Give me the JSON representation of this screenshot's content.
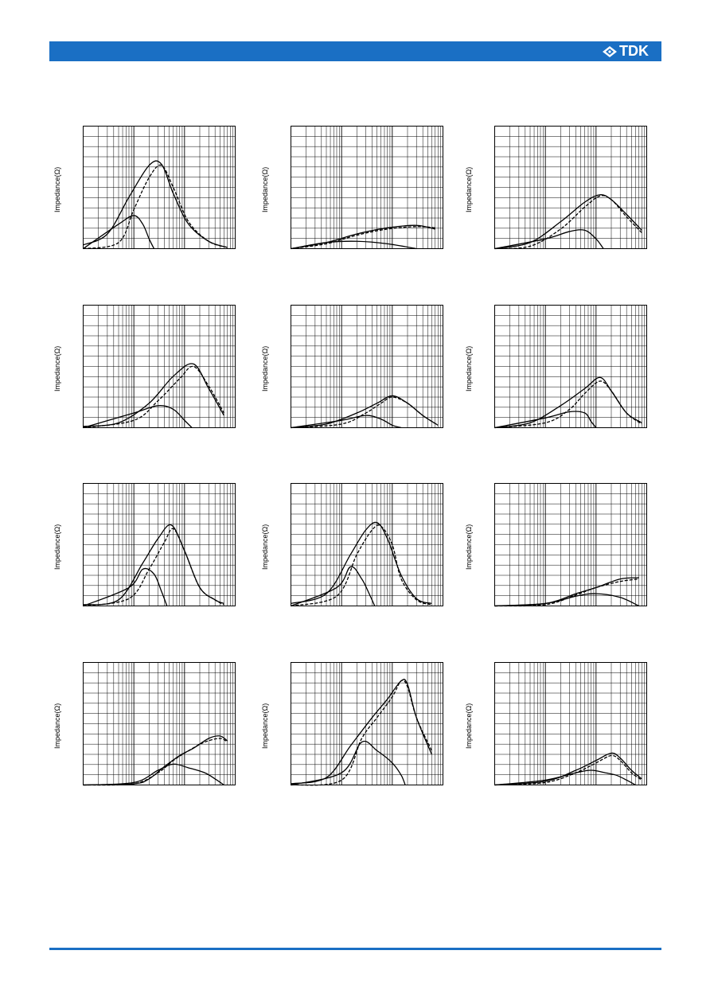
{
  "brand": {
    "logo_text": "TDK",
    "header_color": "#1a6fc4",
    "footer_color": "#1a6fc4"
  },
  "chart_data": [
    {
      "type": "line",
      "ylabel": "Impedance(Ω)",
      "xscale": "log",
      "xlim": [
        1,
        1000
      ],
      "ylim": [
        0,
        1
      ],
      "series": [
        {
          "name": "",
          "style": "solid",
          "x": [
            1,
            3,
            8,
            20,
            35,
            60,
            120,
            300,
            700
          ],
          "y": [
            0.03,
            0.12,
            0.42,
            0.68,
            0.69,
            0.45,
            0.2,
            0.06,
            0.01
          ]
        },
        {
          "name": "",
          "style": "dashed",
          "x": [
            1,
            5,
            10,
            20,
            35,
            60,
            120,
            300,
            700
          ],
          "y": [
            0.0,
            0.05,
            0.32,
            0.58,
            0.68,
            0.5,
            0.22,
            0.06,
            0.01
          ]
        },
        {
          "name": "",
          "style": "solid",
          "x": [
            1,
            5,
            10,
            15,
            20,
            25
          ],
          "y": [
            0.0,
            0.2,
            0.27,
            0.2,
            0.08,
            0.0
          ]
        }
      ]
    },
    {
      "type": "line",
      "ylabel": "Impedance(Ω)",
      "xscale": "log",
      "xlim": [
        1,
        1000
      ],
      "ylim": [
        0,
        1
      ],
      "series": [
        {
          "name": "",
          "style": "solid",
          "x": [
            1,
            5,
            20,
            80,
            300,
            700
          ],
          "y": [
            0.0,
            0.05,
            0.12,
            0.17,
            0.19,
            0.16
          ]
        },
        {
          "name": "",
          "style": "dashed",
          "x": [
            1,
            5,
            20,
            80,
            300,
            700
          ],
          "y": [
            0.0,
            0.04,
            0.11,
            0.16,
            0.18,
            0.17
          ]
        },
        {
          "name": "",
          "style": "solid",
          "x": [
            1,
            5,
            20,
            80,
            300
          ],
          "y": [
            0.0,
            0.05,
            0.06,
            0.04,
            0.0
          ]
        }
      ]
    },
    {
      "type": "line",
      "ylabel": "Impedance(Ω)",
      "xscale": "log",
      "xlim": [
        1,
        1000
      ],
      "ylim": [
        0,
        1
      ],
      "series": [
        {
          "name": "",
          "style": "solid",
          "x": [
            1,
            5,
            20,
            60,
            120,
            200,
            400,
            800
          ],
          "y": [
            0.0,
            0.05,
            0.22,
            0.38,
            0.44,
            0.4,
            0.28,
            0.15
          ]
        },
        {
          "name": "",
          "style": "dashed",
          "x": [
            1,
            5,
            20,
            60,
            120,
            200,
            400,
            800
          ],
          "y": [
            0.0,
            0.02,
            0.16,
            0.34,
            0.43,
            0.4,
            0.26,
            0.13
          ]
        },
        {
          "name": "",
          "style": "solid",
          "x": [
            1,
            10,
            30,
            60,
            100,
            140
          ],
          "y": [
            0.0,
            0.08,
            0.14,
            0.15,
            0.08,
            0.0
          ]
        }
      ]
    },
    {
      "type": "line",
      "ylabel": "Impedance(Ω)",
      "xscale": "log",
      "xlim": [
        1,
        1000
      ],
      "ylim": [
        0,
        1
      ],
      "series": [
        {
          "name": "",
          "style": "solid",
          "x": [
            1,
            5,
            20,
            60,
            150,
            300,
            600
          ],
          "y": [
            0.01,
            0.04,
            0.2,
            0.42,
            0.52,
            0.32,
            0.1
          ]
        },
        {
          "name": "",
          "style": "dashed",
          "x": [
            1,
            10,
            30,
            80,
            150,
            300,
            600
          ],
          "y": [
            0.0,
            0.06,
            0.22,
            0.4,
            0.5,
            0.34,
            0.12
          ]
        },
        {
          "name": "",
          "style": "solid",
          "x": [
            1,
            10,
            30,
            60,
            100,
            140
          ],
          "y": [
            0.0,
            0.12,
            0.18,
            0.15,
            0.06,
            0.0
          ]
        }
      ]
    },
    {
      "type": "line",
      "ylabel": "Impedance(Ω)",
      "xscale": "log",
      "xlim": [
        1,
        1000
      ],
      "ylim": [
        0,
        1
      ],
      "series": [
        {
          "name": "",
          "style": "solid",
          "x": [
            1,
            5,
            20,
            50,
            100,
            200,
            400,
            800
          ],
          "y": [
            0.0,
            0.03,
            0.12,
            0.2,
            0.26,
            0.2,
            0.1,
            0.02
          ]
        },
        {
          "name": "",
          "style": "dashed",
          "x": [
            1,
            10,
            30,
            60,
            100,
            200,
            400,
            800
          ],
          "y": [
            0.0,
            0.03,
            0.12,
            0.2,
            0.25,
            0.2,
            0.1,
            0.02
          ]
        },
        {
          "name": "",
          "style": "solid",
          "x": [
            1,
            10,
            30,
            60,
            100,
            150
          ],
          "y": [
            0.0,
            0.06,
            0.1,
            0.07,
            0.02,
            0.0
          ]
        }
      ]
    },
    {
      "type": "line",
      "ylabel": "Impedance(Ω)",
      "xscale": "log",
      "xlim": [
        1,
        1000
      ],
      "ylim": [
        0,
        1
      ],
      "series": [
        {
          "name": "",
          "style": "solid",
          "x": [
            1,
            5,
            20,
            60,
            120,
            200,
            400,
            800
          ],
          "y": [
            0.0,
            0.04,
            0.18,
            0.32,
            0.41,
            0.3,
            0.12,
            0.04
          ]
        },
        {
          "name": "",
          "style": "dashed",
          "x": [
            1,
            10,
            30,
            60,
            120,
            200,
            400,
            800
          ],
          "y": [
            0.0,
            0.04,
            0.15,
            0.28,
            0.38,
            0.3,
            0.12,
            0.03
          ]
        },
        {
          "name": "",
          "style": "solid",
          "x": [
            1,
            10,
            30,
            60,
            80,
            100
          ],
          "y": [
            0.0,
            0.08,
            0.13,
            0.12,
            0.05,
            0.0
          ]
        }
      ]
    },
    {
      "type": "line",
      "ylabel": "Impedance(Ω)",
      "xscale": "log",
      "xlim": [
        1,
        1000
      ],
      "ylim": [
        0,
        1
      ],
      "series": [
        {
          "name": "",
          "style": "solid",
          "x": [
            1,
            5,
            15,
            30,
            55,
            100,
            200,
            400,
            600
          ],
          "y": [
            0.01,
            0.05,
            0.35,
            0.55,
            0.66,
            0.45,
            0.15,
            0.05,
            0.02
          ]
        },
        {
          "name": "",
          "style": "dashed",
          "x": [
            1,
            8,
            20,
            40,
            60,
            100,
            200,
            400,
            600
          ],
          "y": [
            0.0,
            0.06,
            0.3,
            0.52,
            0.63,
            0.45,
            0.15,
            0.05,
            0.01
          ]
        },
        {
          "name": "",
          "style": "solid",
          "x": [
            1,
            8,
            15,
            25,
            35,
            45
          ],
          "y": [
            0.0,
            0.15,
            0.3,
            0.26,
            0.12,
            0.0
          ]
        }
      ]
    },
    {
      "type": "line",
      "ylabel": "Impedance(Ω)",
      "xscale": "log",
      "xlim": [
        1,
        1000
      ],
      "ylim": [
        0,
        1
      ],
      "series": [
        {
          "name": "",
          "style": "solid",
          "x": [
            1,
            5,
            15,
            30,
            50,
            80,
            150,
            300,
            600
          ],
          "y": [
            0.02,
            0.1,
            0.42,
            0.62,
            0.68,
            0.55,
            0.25,
            0.06,
            0.02
          ]
        },
        {
          "name": "",
          "style": "dashed",
          "x": [
            1,
            8,
            20,
            40,
            60,
            100,
            150,
            300,
            600
          ],
          "y": [
            0.0,
            0.08,
            0.42,
            0.62,
            0.65,
            0.5,
            0.22,
            0.05,
            0.01
          ]
        },
        {
          "name": "",
          "style": "solid",
          "x": [
            1,
            8,
            15,
            25,
            35,
            45
          ],
          "y": [
            0.0,
            0.15,
            0.32,
            0.22,
            0.1,
            0.0
          ]
        }
      ]
    },
    {
      "type": "line",
      "ylabel": "Impedance(Ω)",
      "xscale": "log",
      "xlim": [
        1,
        1000
      ],
      "ylim": [
        0,
        1
      ],
      "series": [
        {
          "name": "",
          "style": "solid",
          "x": [
            1,
            10,
            40,
            100,
            300,
            700
          ],
          "y": [
            0.0,
            0.02,
            0.1,
            0.15,
            0.22,
            0.23
          ]
        },
        {
          "name": "",
          "style": "dashed",
          "x": [
            1,
            10,
            40,
            100,
            300,
            700
          ],
          "y": [
            0.0,
            0.01,
            0.09,
            0.15,
            0.2,
            0.22
          ]
        },
        {
          "name": "",
          "style": "solid",
          "x": [
            1,
            10,
            40,
            100,
            300,
            700
          ],
          "y": [
            0.0,
            0.02,
            0.08,
            0.1,
            0.07,
            0.0
          ]
        }
      ]
    },
    {
      "type": "line",
      "ylabel": "Impedance(Ω)",
      "xscale": "log",
      "xlim": [
        1,
        1000
      ],
      "ylim": [
        0,
        1
      ],
      "series": [
        {
          "name": "",
          "style": "solid",
          "x": [
            1,
            10,
            20,
            40,
            80,
            150,
            300,
            500,
            700
          ],
          "y": [
            0.0,
            0.01,
            0.05,
            0.15,
            0.24,
            0.3,
            0.38,
            0.4,
            0.36
          ]
        },
        {
          "name": "",
          "style": "dashed",
          "x": [
            1,
            10,
            30,
            60,
            120,
            250,
            500,
            700
          ],
          "y": [
            0.0,
            0.01,
            0.1,
            0.2,
            0.28,
            0.35,
            0.38,
            0.35
          ]
        },
        {
          "name": "",
          "style": "solid",
          "x": [
            1,
            10,
            30,
            60,
            120,
            250,
            400,
            600
          ],
          "y": [
            0.0,
            0.02,
            0.12,
            0.17,
            0.14,
            0.1,
            0.05,
            0.0
          ]
        }
      ]
    },
    {
      "type": "line",
      "ylabel": "Impedance(Ω)",
      "xscale": "log",
      "xlim": [
        1,
        1000
      ],
      "ylim": [
        0,
        1
      ],
      "series": [
        {
          "name": "",
          "style": "solid",
          "x": [
            1,
            5,
            15,
            40,
            80,
            150,
            200,
            300,
            600
          ],
          "y": [
            0.01,
            0.06,
            0.32,
            0.55,
            0.7,
            0.85,
            0.82,
            0.55,
            0.25
          ]
        },
        {
          "name": "",
          "style": "dashed",
          "x": [
            1,
            10,
            25,
            50,
            100,
            150,
            200,
            300,
            600
          ],
          "y": [
            0.0,
            0.04,
            0.38,
            0.55,
            0.72,
            0.85,
            0.8,
            0.55,
            0.28
          ]
        },
        {
          "name": "",
          "style": "solid",
          "x": [
            1,
            10,
            25,
            50,
            100,
            150,
            180
          ],
          "y": [
            0.0,
            0.1,
            0.35,
            0.28,
            0.18,
            0.08,
            0.0
          ]
        }
      ]
    },
    {
      "type": "line",
      "ylabel": "Impedance(Ω)",
      "xscale": "log",
      "xlim": [
        1,
        1000
      ],
      "ylim": [
        0,
        1
      ],
      "series": [
        {
          "name": "",
          "style": "solid",
          "x": [
            1,
            10,
            40,
            100,
            200,
            300,
            500,
            800
          ],
          "y": [
            0.0,
            0.03,
            0.12,
            0.2,
            0.26,
            0.22,
            0.12,
            0.05
          ]
        },
        {
          "name": "",
          "style": "dashed",
          "x": [
            1,
            10,
            40,
            100,
            200,
            300,
            500,
            800
          ],
          "y": [
            0.0,
            0.02,
            0.1,
            0.18,
            0.24,
            0.2,
            0.1,
            0.04
          ]
        },
        {
          "name": "",
          "style": "solid",
          "x": [
            1,
            10,
            40,
            80,
            150,
            250,
            400,
            600
          ],
          "y": [
            0.0,
            0.04,
            0.1,
            0.12,
            0.1,
            0.08,
            0.04,
            0.0
          ]
        }
      ]
    }
  ]
}
